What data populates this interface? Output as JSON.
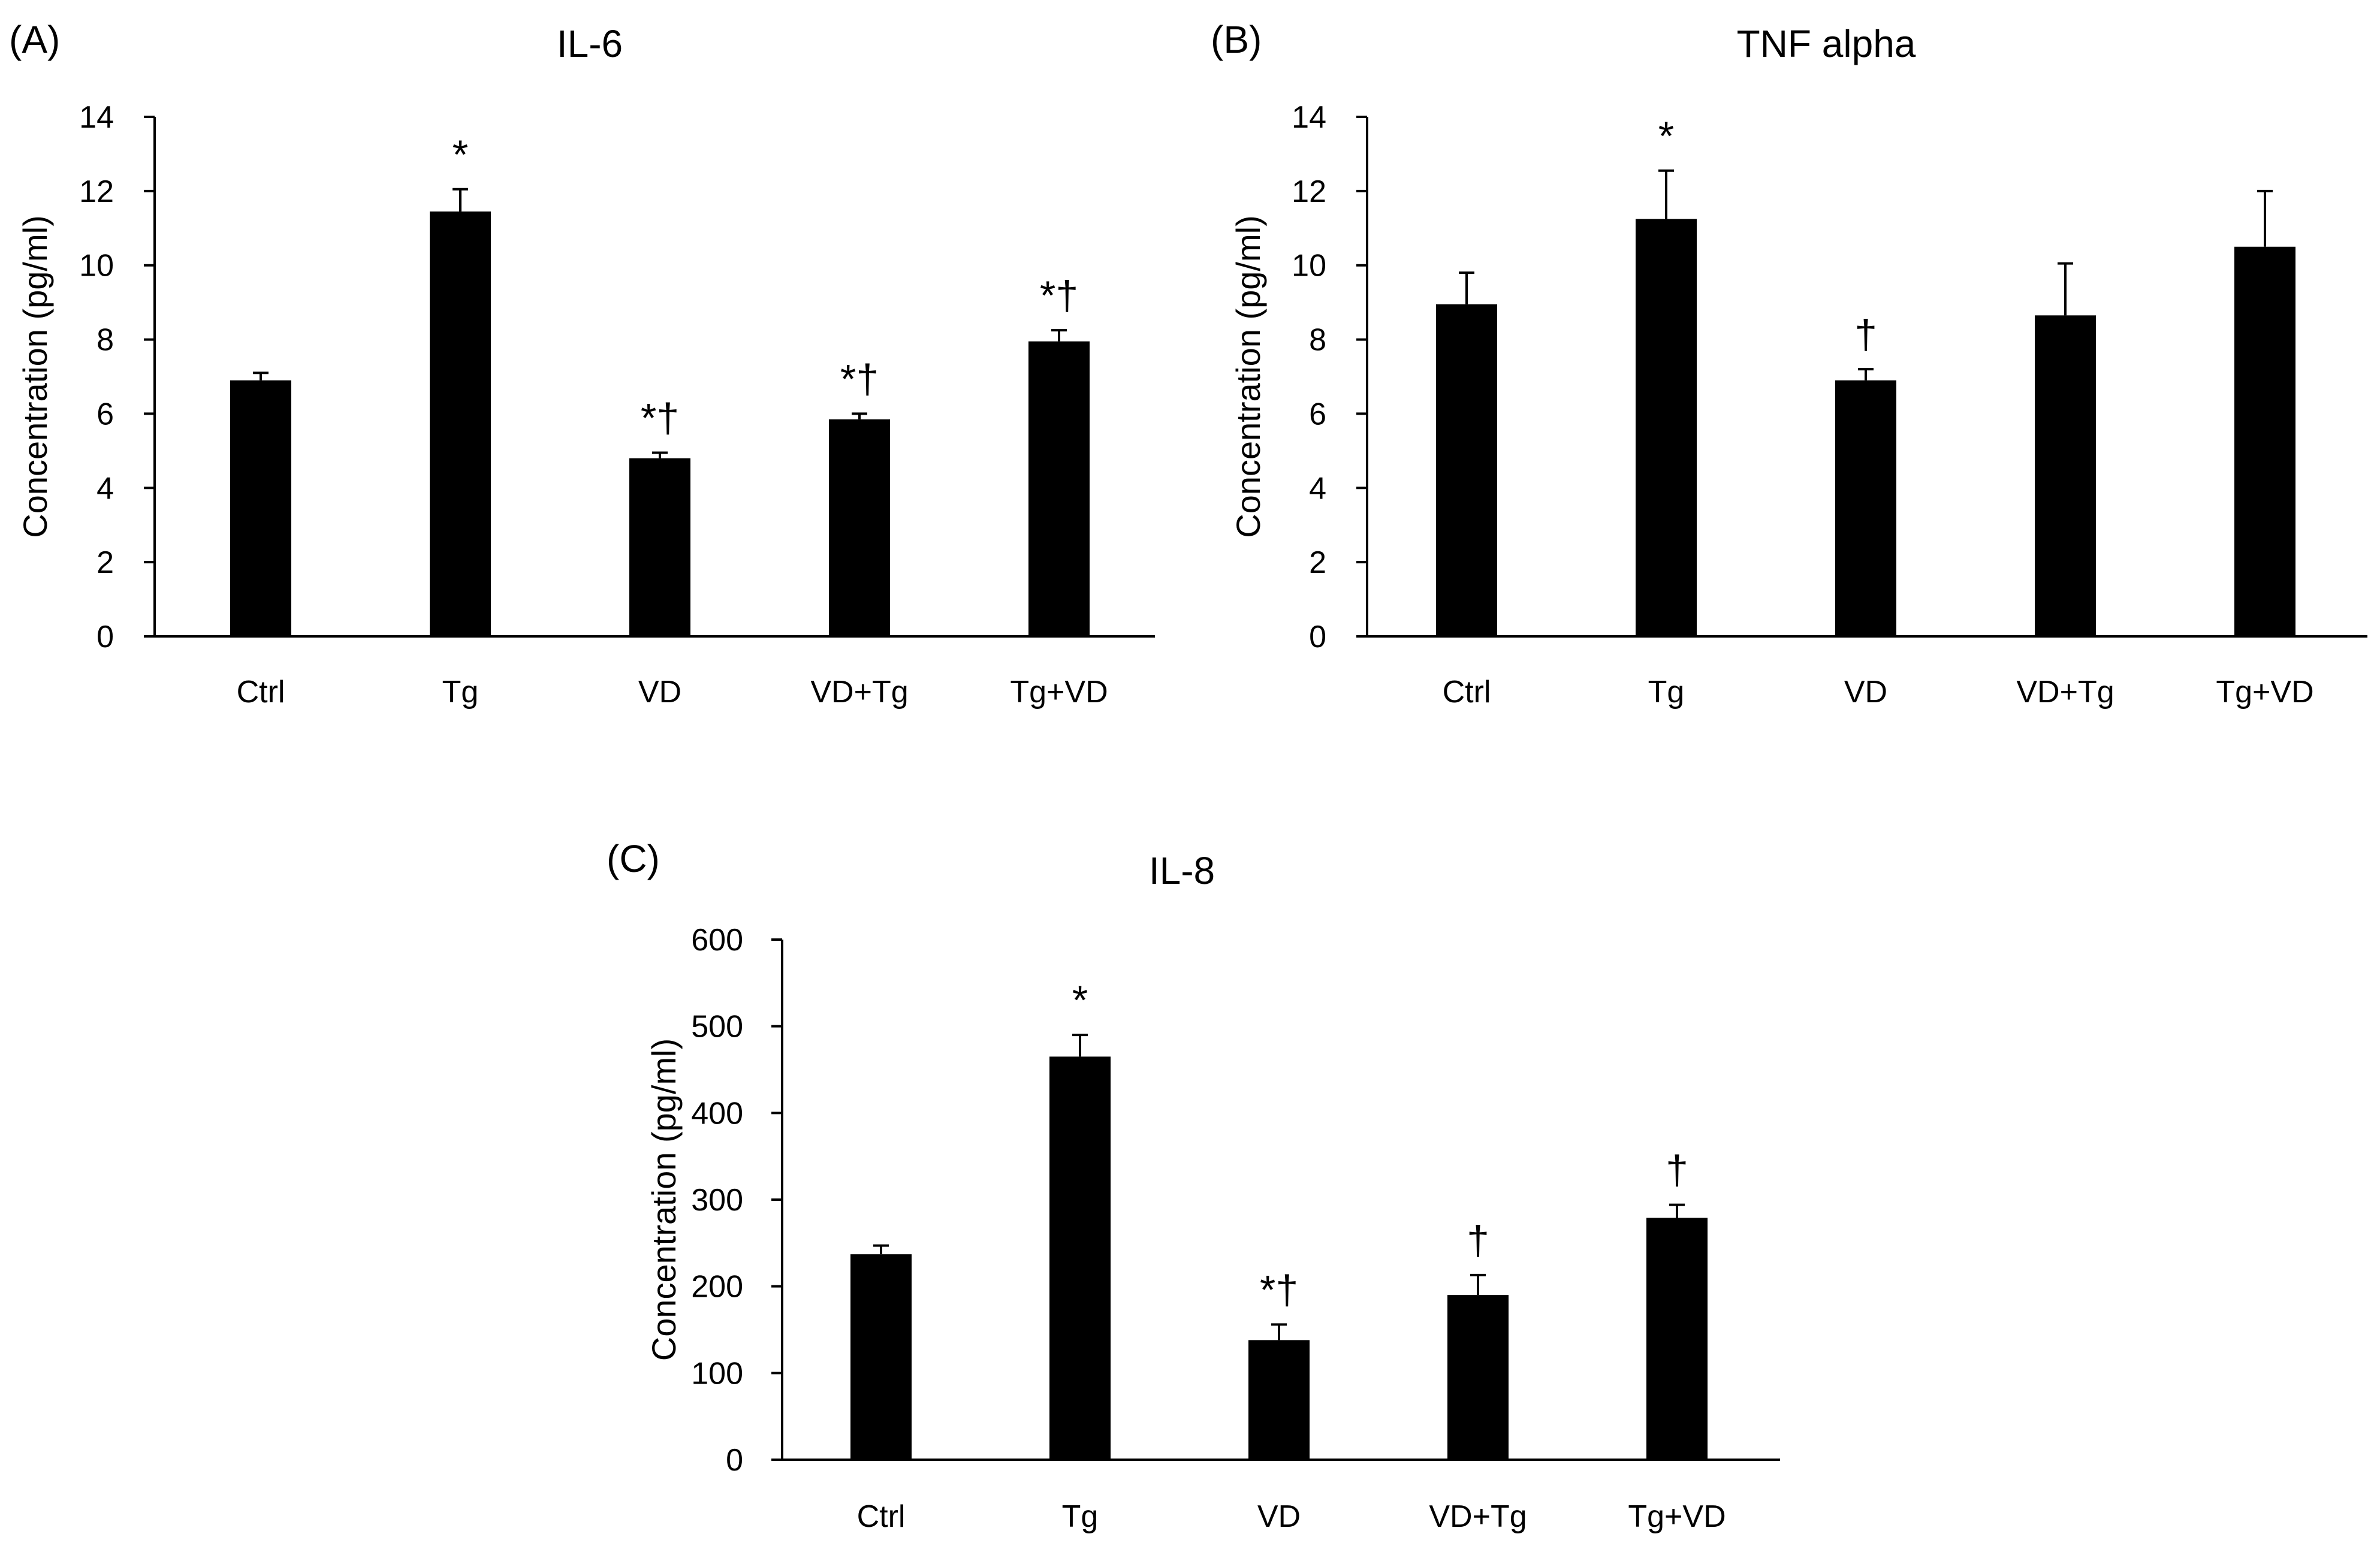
{
  "figure": {
    "background": "#ffffff",
    "bar_color": "#000000"
  },
  "chart_data": [
    {
      "panel": "(A)",
      "type": "bar",
      "title": "IL-6",
      "xlabel": "",
      "ylabel": "Concentration (pg/ml)",
      "ylim": [
        0,
        14
      ],
      "yticks": [
        0,
        2,
        4,
        6,
        8,
        10,
        12,
        14
      ],
      "grid": false,
      "categories": [
        "Ctrl",
        "Tg",
        "VD",
        "VD+Tg",
        "Tg+VD"
      ],
      "values": [
        6.9,
        11.45,
        4.8,
        5.85,
        7.95
      ],
      "errors": [
        0.2,
        0.6,
        0.15,
        0.15,
        0.3
      ],
      "annotations": [
        "",
        "*",
        "*†",
        "*†",
        "*†"
      ]
    },
    {
      "panel": "(B)",
      "type": "bar",
      "title": "TNF alpha",
      "xlabel": "",
      "ylabel": "Concentration (pg/ml)",
      "ylim": [
        0,
        14
      ],
      "yticks": [
        0,
        2,
        4,
        6,
        8,
        10,
        12,
        14
      ],
      "grid": false,
      "categories": [
        "Ctrl",
        "Tg",
        "VD",
        "VD+Tg",
        "Tg+VD"
      ],
      "values": [
        8.95,
        11.25,
        6.9,
        8.65,
        10.5
      ],
      "errors": [
        0.85,
        1.3,
        0.3,
        1.4,
        1.5
      ],
      "annotations": [
        "",
        "*",
        "†",
        "",
        ""
      ]
    },
    {
      "panel": "(C)",
      "type": "bar",
      "title": "IL-8",
      "xlabel": "",
      "ylabel": "Concentration (pg/ml)",
      "ylim": [
        0,
        600
      ],
      "yticks": [
        0,
        100,
        200,
        300,
        400,
        500,
        600
      ],
      "grid": false,
      "categories": [
        "Ctrl",
        "Tg",
        "VD",
        "VD+Tg",
        "Tg+VD"
      ],
      "values": [
        237,
        465,
        138,
        190,
        279
      ],
      "errors": [
        10,
        25,
        18,
        23,
        15
      ],
      "annotations": [
        "",
        "*",
        "*†",
        "†",
        "†"
      ]
    }
  ]
}
